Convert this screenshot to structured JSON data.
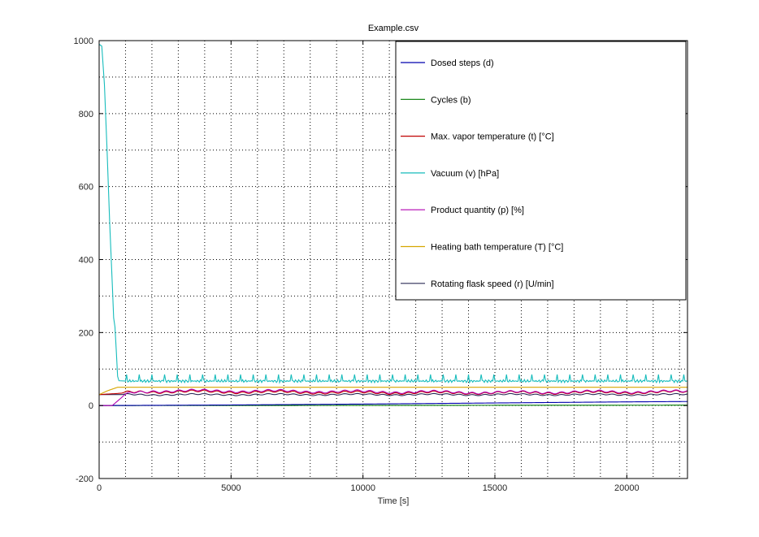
{
  "chart_data": {
    "type": "line",
    "title": "Example.csv",
    "xlabel": "Time [s]",
    "ylabel": "",
    "xlim": [
      0,
      22300
    ],
    "ylim": [
      -200,
      1000
    ],
    "xticks": [
      0,
      5000,
      10000,
      15000,
      20000
    ],
    "yticks": [
      -200,
      0,
      200,
      400,
      600,
      800,
      1000
    ],
    "xtick_labels": [
      "0",
      "5000",
      "10000",
      "15000",
      "20000"
    ],
    "ytick_labels": [
      "-200",
      "0",
      "200",
      "400",
      "600",
      "800",
      "1000"
    ],
    "x_minor_step": 1000,
    "y_minor_step": 100,
    "grid": true,
    "legend_position": "top-right",
    "series": [
      {
        "name": "Dosed steps (d)",
        "color": "#0000ad",
        "points": [
          [
            0,
            0
          ],
          [
            2000,
            0.5
          ],
          [
            5000,
            1.5
          ],
          [
            10000,
            4
          ],
          [
            15000,
            7
          ],
          [
            20000,
            10
          ],
          [
            22300,
            11
          ]
        ]
      },
      {
        "name": "Cycles (b)",
        "color": "#007a00",
        "points": [
          [
            0,
            0
          ],
          [
            22300,
            1
          ]
        ]
      },
      {
        "name": "Max. vapor temperature (t) [°C]",
        "color": "#c00000",
        "points": [
          [
            0,
            30
          ],
          [
            700,
            33
          ],
          [
            1500,
            38
          ],
          [
            3000,
            38
          ],
          [
            6000,
            37
          ],
          [
            10000,
            35
          ],
          [
            15000,
            35
          ],
          [
            20000,
            36
          ],
          [
            22300,
            37
          ]
        ]
      },
      {
        "name": "Vacuum (v) [hPa]",
        "color": "#17bcbc",
        "points": [
          [
            0,
            990
          ],
          [
            100,
            985
          ],
          [
            200,
            880
          ],
          [
            300,
            700
          ],
          [
            400,
            500
          ],
          [
            500,
            330
          ],
          [
            550,
            240
          ],
          [
            600,
            215
          ],
          [
            650,
            150
          ],
          [
            700,
            80
          ],
          [
            750,
            68
          ],
          [
            1000,
            67
          ],
          [
            22300,
            67
          ]
        ],
        "spike_period": 480,
        "spike_height": 18
      },
      {
        "name": "Product quantity (p) [%]",
        "color": "#b000b0",
        "points": [
          [
            0,
            0
          ],
          [
            500,
            0
          ],
          [
            900,
            25
          ],
          [
            1200,
            35
          ],
          [
            2000,
            40
          ],
          [
            5000,
            40
          ],
          [
            10000,
            38
          ],
          [
            15000,
            36
          ],
          [
            20000,
            38
          ],
          [
            22300,
            38
          ]
        ]
      },
      {
        "name": "Heating bath temperature (T) [°C]",
        "color": "#d6a600",
        "points": [
          [
            0,
            30
          ],
          [
            300,
            40
          ],
          [
            700,
            50
          ],
          [
            22300,
            50
          ]
        ]
      },
      {
        "name": "Rotating flask speed (r) [U/min]",
        "color": "#2b2b57",
        "points": [
          [
            0,
            30
          ],
          [
            22300,
            30
          ]
        ]
      }
    ]
  }
}
